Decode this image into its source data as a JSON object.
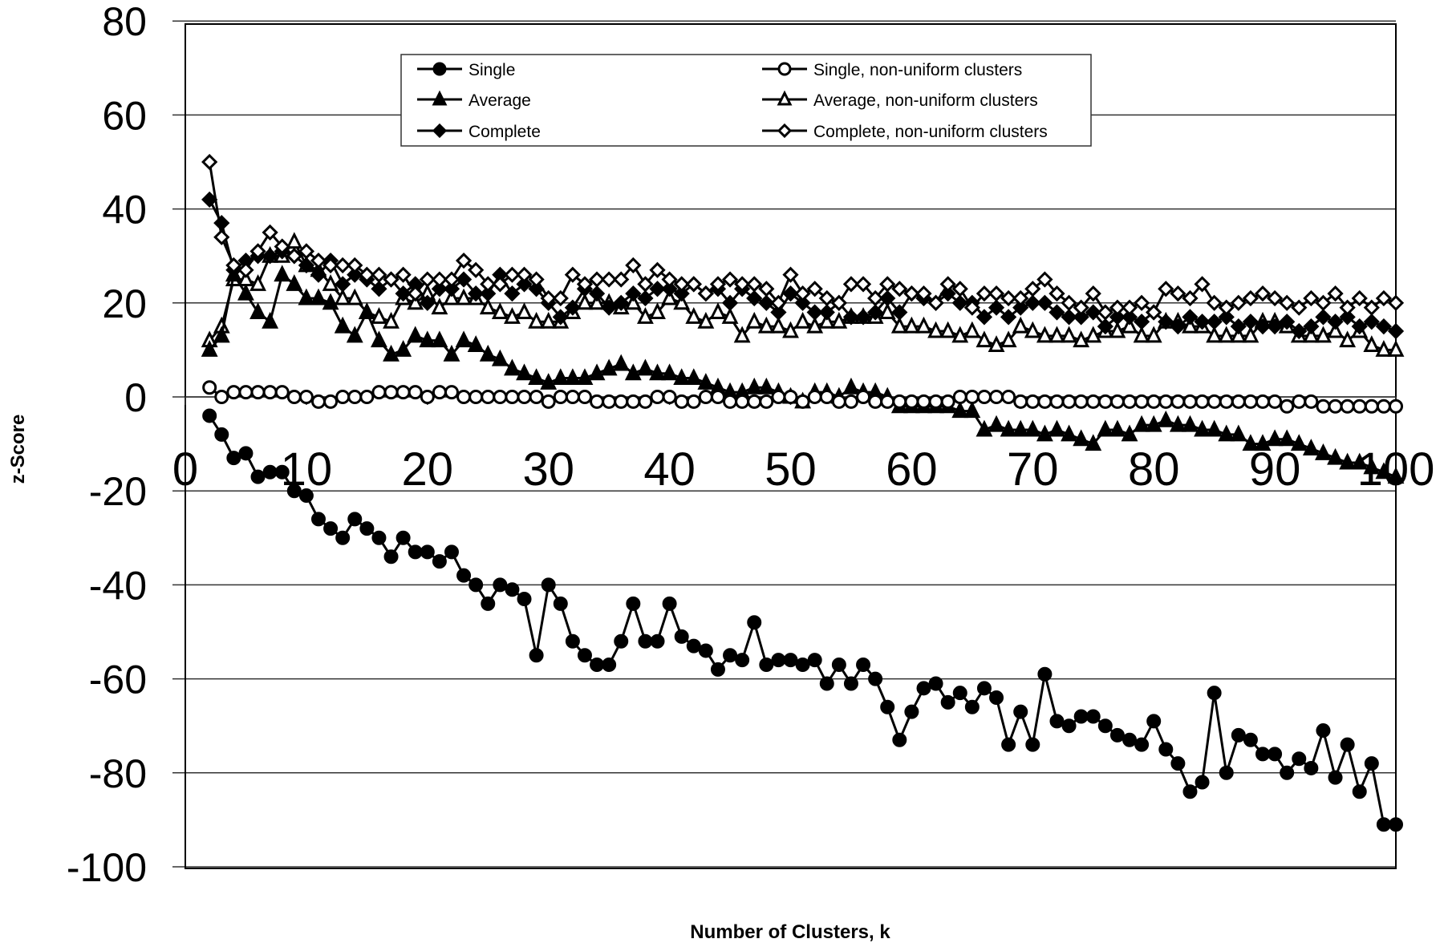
{
  "chart_data": {
    "type": "line",
    "title": "",
    "xlabel": "Number of Clusters, k",
    "ylabel": "z-Score",
    "xlim": [
      0,
      100
    ],
    "ylim": [
      -100,
      80
    ],
    "x_ticks": [
      "0",
      "10",
      "20",
      "30",
      "40",
      "50",
      "60",
      "70",
      "80",
      "90",
      "100"
    ],
    "y_ticks": [
      "80",
      "60",
      "40",
      "20",
      "0",
      "-20",
      "-40",
      "-60",
      "-80",
      "-100"
    ],
    "grid": "horizontal",
    "legend_position": "top-center",
    "x": [
      2,
      3,
      4,
      5,
      6,
      7,
      8,
      9,
      10,
      11,
      12,
      13,
      14,
      15,
      16,
      17,
      18,
      19,
      20,
      21,
      22,
      23,
      24,
      25,
      26,
      27,
      28,
      29,
      30,
      31,
      32,
      33,
      34,
      35,
      36,
      37,
      38,
      39,
      40,
      41,
      42,
      43,
      44,
      45,
      46,
      47,
      48,
      49,
      50,
      51,
      52,
      53,
      54,
      55,
      56,
      57,
      58,
      59,
      60,
      61,
      62,
      63,
      64,
      65,
      66,
      67,
      68,
      69,
      70,
      71,
      72,
      73,
      74,
      75,
      76,
      77,
      78,
      79,
      80,
      81,
      82,
      83,
      84,
      85,
      86,
      87,
      88,
      89,
      90,
      91,
      92,
      93,
      94,
      95,
      96,
      97,
      98,
      99,
      100
    ],
    "series": [
      {
        "name": "Single",
        "marker": "filled-circle",
        "values": [
          -4,
          -8,
          -13,
          -12,
          -17,
          -16,
          -16,
          -20,
          -21,
          -26,
          -28,
          -30,
          -26,
          -28,
          -30,
          -34,
          -30,
          -33,
          -33,
          -35,
          -33,
          -38,
          -40,
          -44,
          -40,
          -41,
          -43,
          -55,
          -40,
          -44,
          -52,
          -55,
          -57,
          -57,
          -52,
          -44,
          -52,
          -52,
          -44,
          -51,
          -53,
          -54,
          -58,
          -55,
          -56,
          -48,
          -57,
          -56,
          -56,
          -57,
          -56,
          -61,
          -57,
          -61,
          -57,
          -60,
          -66,
          -73,
          -67,
          -62,
          -61,
          -65,
          -63,
          -66,
          -62,
          -64,
          -74,
          -67,
          -74,
          -59,
          -69,
          -70,
          -68,
          -68,
          -70,
          -72,
          -73,
          -74,
          -69,
          -75,
          -78,
          -84,
          -82,
          -63,
          -80,
          -72,
          -73,
          -76,
          -76,
          -80,
          -77,
          -79,
          -71,
          -81,
          -74,
          -84,
          -78,
          -91,
          -91
        ]
      },
      {
        "name": "Average",
        "marker": "filled-triangle",
        "values": [
          10,
          13,
          26,
          22,
          18,
          16,
          26,
          24,
          21,
          21,
          20,
          15,
          13,
          18,
          12,
          9,
          10,
          13,
          12,
          12,
          9,
          12,
          11,
          9,
          8,
          6,
          5,
          4,
          3,
          4,
          4,
          4,
          5,
          6,
          7,
          5,
          6,
          5,
          5,
          4,
          4,
          3,
          2,
          1,
          1,
          2,
          2,
          1,
          0,
          -1,
          1,
          1,
          0,
          2,
          1,
          1,
          0,
          -2,
          -2,
          -2,
          -2,
          -2,
          -3,
          -3,
          -7,
          -6,
          -7,
          -7,
          -7,
          -8,
          -7,
          -8,
          -9,
          -10,
          -7,
          -7,
          -8,
          -6,
          -6,
          -5,
          -6,
          -6,
          -7,
          -7,
          -8,
          -8,
          -10,
          -10,
          -9,
          -9,
          -10,
          -11,
          -12,
          -13,
          -14,
          -14,
          -15,
          -16,
          -17
        ]
      },
      {
        "name": "Complete",
        "marker": "filled-diamond",
        "values": [
          42,
          37,
          27,
          29,
          30,
          30,
          31,
          30,
          28,
          26,
          29,
          24,
          26,
          25,
          23,
          25,
          22,
          24,
          20,
          23,
          23,
          25,
          22,
          22,
          26,
          22,
          24,
          23,
          20,
          17,
          19,
          23,
          22,
          19,
          20,
          22,
          21,
          23,
          23,
          22,
          24,
          22,
          23,
          20,
          23,
          21,
          20,
          18,
          22,
          20,
          18,
          18,
          20,
          17,
          17,
          18,
          21,
          18,
          22,
          21,
          20,
          22,
          20,
          20,
          17,
          19,
          17,
          19,
          20,
          20,
          18,
          17,
          17,
          18,
          15,
          17,
          17,
          16,
          18,
          16,
          15,
          17,
          16,
          16,
          17,
          15,
          16,
          15,
          15,
          16,
          14,
          15,
          17,
          16,
          17,
          15,
          16,
          15,
          14
        ]
      },
      {
        "name": "Single, non-uniform clusters",
        "marker": "open-circle",
        "values": [
          2,
          0,
          1,
          1,
          1,
          1,
          1,
          0,
          0,
          -1,
          -1,
          0,
          0,
          0,
          1,
          1,
          1,
          1,
          0,
          1,
          1,
          0,
          0,
          0,
          0,
          0,
          0,
          0,
          -1,
          0,
          0,
          0,
          -1,
          -1,
          -1,
          -1,
          -1,
          0,
          0,
          -1,
          -1,
          0,
          0,
          -1,
          -1,
          -1,
          -1,
          0,
          0,
          -1,
          0,
          0,
          -1,
          -1,
          0,
          -1,
          -1,
          -1,
          -1,
          -1,
          -1,
          -1,
          0,
          0,
          0,
          0,
          0,
          -1,
          -1,
          -1,
          -1,
          -1,
          -1,
          -1,
          -1,
          -1,
          -1,
          -1,
          -1,
          -1,
          -1,
          -1,
          -1,
          -1,
          -1,
          -1,
          -1,
          -1,
          -1,
          -2,
          -1,
          -1,
          -2,
          -2,
          -2,
          -2,
          -2,
          -2,
          -2
        ]
      },
      {
        "name": "Average, non-uniform clusters",
        "marker": "open-triangle",
        "values": [
          12,
          15,
          25,
          25,
          24,
          30,
          30,
          33,
          28,
          27,
          24,
          21,
          21,
          18,
          17,
          16,
          21,
          20,
          22,
          19,
          21,
          21,
          21,
          19,
          18,
          17,
          18,
          16,
          16,
          16,
          18,
          20,
          20,
          20,
          19,
          20,
          17,
          18,
          21,
          20,
          17,
          16,
          18,
          17,
          13,
          16,
          15,
          15,
          14,
          16,
          15,
          16,
          16,
          17,
          17,
          17,
          18,
          15,
          15,
          15,
          14,
          14,
          13,
          14,
          12,
          11,
          12,
          15,
          14,
          13,
          13,
          13,
          12,
          13,
          14,
          14,
          15,
          13,
          13,
          16,
          16,
          15,
          15,
          13,
          13,
          13,
          13,
          16,
          16,
          15,
          13,
          13,
          13,
          14,
          12,
          14,
          11,
          10,
          10
        ]
      },
      {
        "name": "Complete, non-uniform clusters",
        "marker": "open-diamond",
        "values": [
          50,
          34,
          28,
          27,
          31,
          35,
          32,
          30,
          31,
          29,
          28,
          28,
          28,
          26,
          26,
          25,
          26,
          22,
          25,
          25,
          25,
          29,
          27,
          24,
          24,
          26,
          26,
          25,
          21,
          21,
          26,
          24,
          25,
          25,
          25,
          28,
          24,
          27,
          25,
          24,
          24,
          22,
          24,
          25,
          24,
          24,
          23,
          20,
          26,
          22,
          23,
          21,
          20,
          24,
          24,
          21,
          24,
          23,
          22,
          22,
          20,
          24,
          23,
          19,
          22,
          22,
          21,
          21,
          23,
          25,
          22,
          20,
          19,
          22,
          18,
          19,
          19,
          20,
          18,
          23,
          22,
          21,
          24,
          20,
          19,
          20,
          21,
          22,
          21,
          20,
          19,
          21,
          20,
          22,
          19,
          21,
          19,
          21,
          20
        ]
      }
    ]
  }
}
